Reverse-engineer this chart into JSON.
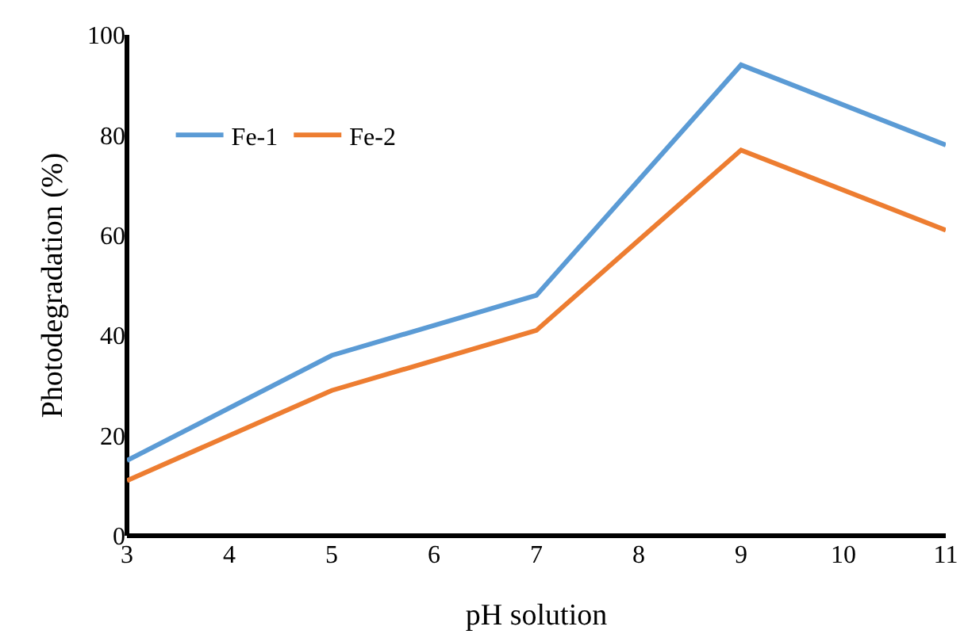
{
  "chart_data": {
    "type": "line",
    "xlabel": "pH solution",
    "ylabel": "Photodegradation (%)",
    "x": [
      3,
      5,
      7,
      9,
      11
    ],
    "series": [
      {
        "name": "Fe-1",
        "color": "#5b9bd5",
        "values": [
          15,
          36,
          48,
          94,
          78
        ]
      },
      {
        "name": "Fe-2",
        "color": "#ed7d31",
        "values": [
          11,
          29,
          41,
          77,
          61
        ]
      }
    ],
    "xlim": [
      3,
      11
    ],
    "xticks": [
      3,
      4,
      5,
      6,
      7,
      8,
      9,
      10,
      11
    ],
    "ylim": [
      0,
      100
    ],
    "yticks": [
      0,
      20,
      40,
      60,
      80,
      100
    ],
    "grid": false,
    "legend": "top left",
    "marker": "none",
    "line_style": "solid"
  }
}
